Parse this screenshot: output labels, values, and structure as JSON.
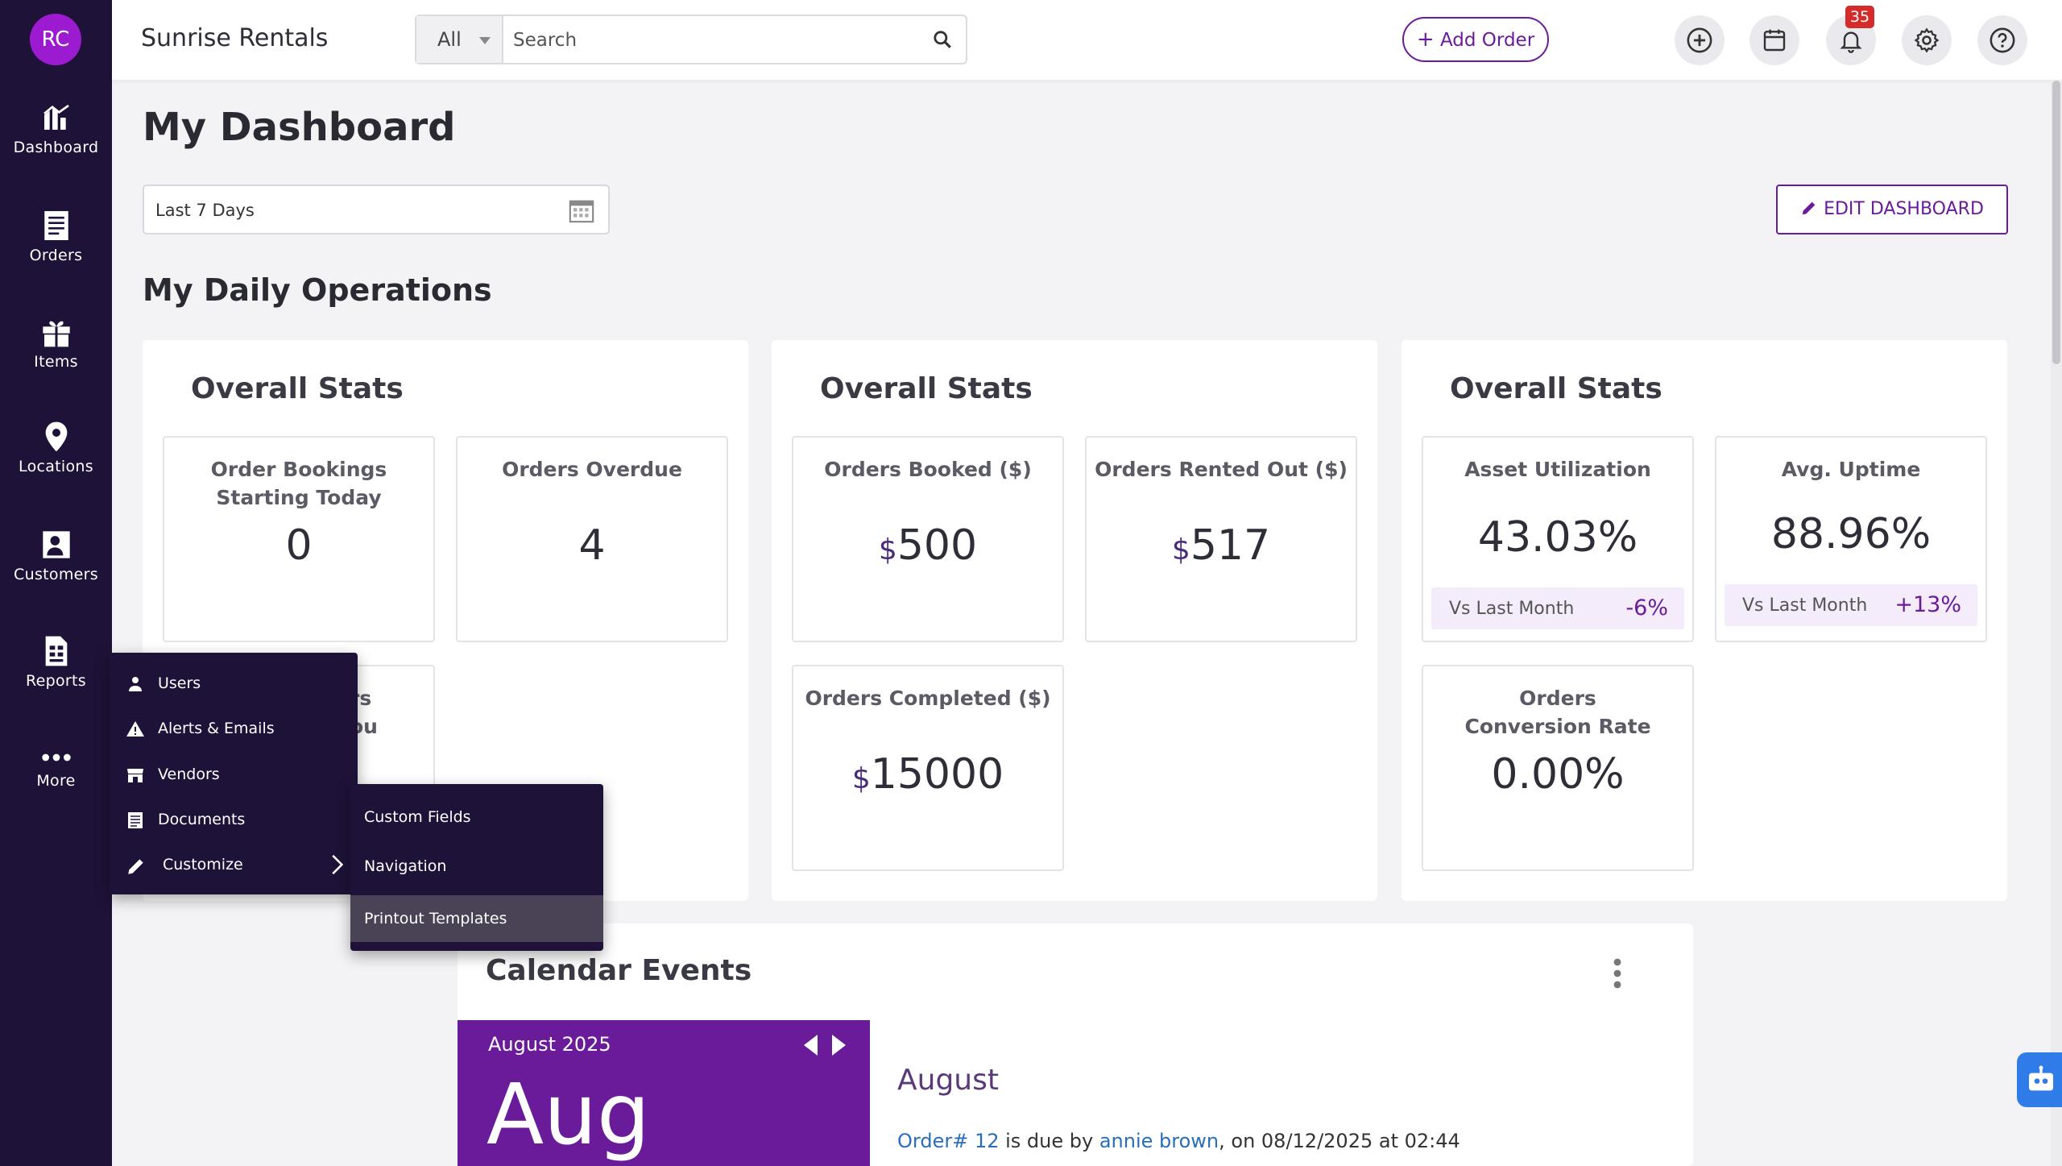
{
  "user": {
    "initials": "RC"
  },
  "nav": {
    "items": [
      {
        "label": "Dashboard",
        "icon": "dashboard-icon"
      },
      {
        "label": "Orders",
        "icon": "orders-icon"
      },
      {
        "label": "Items",
        "icon": "items-icon"
      },
      {
        "label": "Locations",
        "icon": "location-pin-icon"
      },
      {
        "label": "Customers",
        "icon": "customers-icon"
      },
      {
        "label": "Reports",
        "icon": "reports-icon"
      },
      {
        "label": "More",
        "icon": "more-dots-icon"
      }
    ]
  },
  "header": {
    "app_name": "Sunrise Rentals",
    "search_scope": "All",
    "search_placeholder": "Search",
    "add_order_label": "Add Order",
    "notification_count": "35"
  },
  "page": {
    "title": "My Dashboard",
    "date_range": "Last 7 Days",
    "edit_dashboard_label": "EDIT DASHBOARD",
    "section_title": "My Daily Operations"
  },
  "panels": [
    {
      "title": "Overall Stats",
      "cards": [
        {
          "label": "Order Bookings Starting Today",
          "value": "0"
        },
        {
          "label": "Orders Overdue",
          "value": "4"
        },
        {
          "label_partial_1": "rs",
          "label_partial_2": "ou"
        }
      ]
    },
    {
      "title": "Overall Stats",
      "cards": [
        {
          "label": "Orders Booked ($)",
          "currency": "$",
          "value": "500"
        },
        {
          "label": "Orders Rented Out ($)",
          "currency": "$",
          "value": "517"
        },
        {
          "label": "Orders Completed ($)",
          "currency": "$",
          "value": "15000"
        }
      ]
    },
    {
      "title": "Overall Stats",
      "cards": [
        {
          "label": "Asset Utilization",
          "value": "43.03%",
          "vs_label": "Vs Last Month",
          "vs_value": "-6%"
        },
        {
          "label": "Avg. Uptime",
          "value": "88.96%",
          "vs_label": "Vs Last Month",
          "vs_value": "+13%"
        },
        {
          "label": "Orders Conversion Rate",
          "value": "0.00%"
        }
      ]
    }
  ],
  "calendar": {
    "title": "Calendar Events",
    "month_year": "August 2025",
    "month_short": "Aug",
    "month_heading": "August",
    "event": {
      "order_link": "Order# 12",
      "text_1": " is due by ",
      "customer_link": "annie brown",
      "text_2": ", on 08/12/2025 at 02:44"
    }
  },
  "more_menu": {
    "items": [
      {
        "label": "Users",
        "icon": "users-icon"
      },
      {
        "label": "Alerts & Emails",
        "icon": "alert-icon"
      },
      {
        "label": "Vendors",
        "icon": "store-icon"
      },
      {
        "label": "Documents",
        "icon": "documents-icon"
      },
      {
        "label": "Customize",
        "icon": "pencil-icon"
      }
    ],
    "submenu": [
      {
        "label": "Custom Fields"
      },
      {
        "label": "Navigation"
      },
      {
        "label": "Printout Templates",
        "active": true
      }
    ]
  },
  "colors": {
    "sidebar": "#1e1238",
    "accent": "#6a1b9a",
    "avatar": "#9c1bd0",
    "badge": "#d62b2b",
    "link": "#2a6ebb"
  }
}
